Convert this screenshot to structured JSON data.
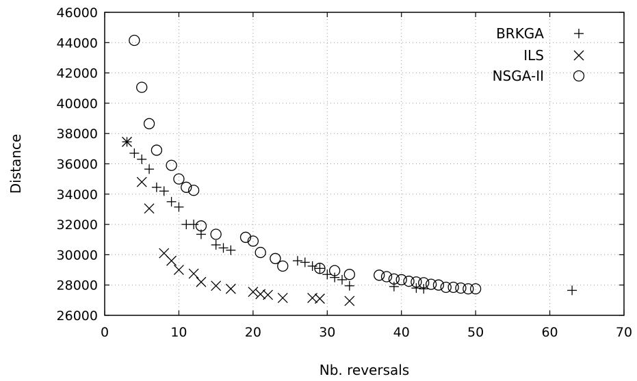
{
  "chart_data": {
    "type": "scatter",
    "xlabel": "Nb. reversals",
    "ylabel": "Distance",
    "xlim": [
      0,
      70
    ],
    "ylim": [
      26000,
      46000
    ],
    "xticks": [
      0,
      10,
      20,
      30,
      40,
      50,
      60,
      70
    ],
    "yticks": [
      26000,
      28000,
      30000,
      32000,
      34000,
      36000,
      38000,
      40000,
      42000,
      44000,
      46000
    ],
    "grid": true,
    "legend_position": "top-right",
    "series": [
      {
        "name": "BRKGA",
        "marker": "plus",
        "points": [
          [
            3,
            37450
          ],
          [
            4,
            36700
          ],
          [
            5,
            36300
          ],
          [
            6,
            35650
          ],
          [
            7,
            34450
          ],
          [
            8,
            34200
          ],
          [
            9,
            33500
          ],
          [
            10,
            33150
          ],
          [
            11,
            32000
          ],
          [
            12,
            32000
          ],
          [
            13,
            31350
          ],
          [
            15,
            30650
          ],
          [
            16,
            30450
          ],
          [
            17,
            30300
          ],
          [
            26,
            29600
          ],
          [
            27,
            29500
          ],
          [
            28,
            29250
          ],
          [
            29,
            29100
          ],
          [
            30,
            28700
          ],
          [
            31,
            28500
          ],
          [
            32,
            28350
          ],
          [
            33,
            27950
          ],
          [
            39,
            27900
          ],
          [
            42,
            27800
          ],
          [
            43,
            27750
          ],
          [
            63,
            27650
          ]
        ]
      },
      {
        "name": "ILS",
        "marker": "cross",
        "points": [
          [
            3,
            37450
          ],
          [
            5,
            34800
          ],
          [
            6,
            33050
          ],
          [
            8,
            30100
          ],
          [
            9,
            29600
          ],
          [
            10,
            29000
          ],
          [
            12,
            28750
          ],
          [
            13,
            28200
          ],
          [
            15,
            27950
          ],
          [
            17,
            27750
          ],
          [
            20,
            27550
          ],
          [
            21,
            27400
          ],
          [
            22,
            27350
          ],
          [
            24,
            27150
          ],
          [
            28,
            27150
          ],
          [
            29,
            27100
          ],
          [
            33,
            26950
          ]
        ]
      },
      {
        "name": "NSGA-II",
        "marker": "circle",
        "points": [
          [
            4,
            44150
          ],
          [
            5,
            41050
          ],
          [
            6,
            38650
          ],
          [
            7,
            36900
          ],
          [
            9,
            35900
          ],
          [
            10,
            35000
          ],
          [
            11,
            34450
          ],
          [
            12,
            34250
          ],
          [
            13,
            31900
          ],
          [
            15,
            31350
          ],
          [
            19,
            31150
          ],
          [
            20,
            30900
          ],
          [
            21,
            30150
          ],
          [
            23,
            29750
          ],
          [
            24,
            29250
          ],
          [
            29,
            29100
          ],
          [
            31,
            28950
          ],
          [
            33,
            28700
          ],
          [
            37,
            28650
          ],
          [
            38,
            28550
          ],
          [
            39,
            28400
          ],
          [
            40,
            28350
          ],
          [
            41,
            28250
          ],
          [
            42,
            28200
          ],
          [
            43,
            28150
          ],
          [
            44,
            28050
          ],
          [
            45,
            28000
          ],
          [
            46,
            27850
          ],
          [
            47,
            27850
          ],
          [
            48,
            27800
          ],
          [
            49,
            27750
          ],
          [
            50,
            27750
          ]
        ]
      }
    ]
  }
}
